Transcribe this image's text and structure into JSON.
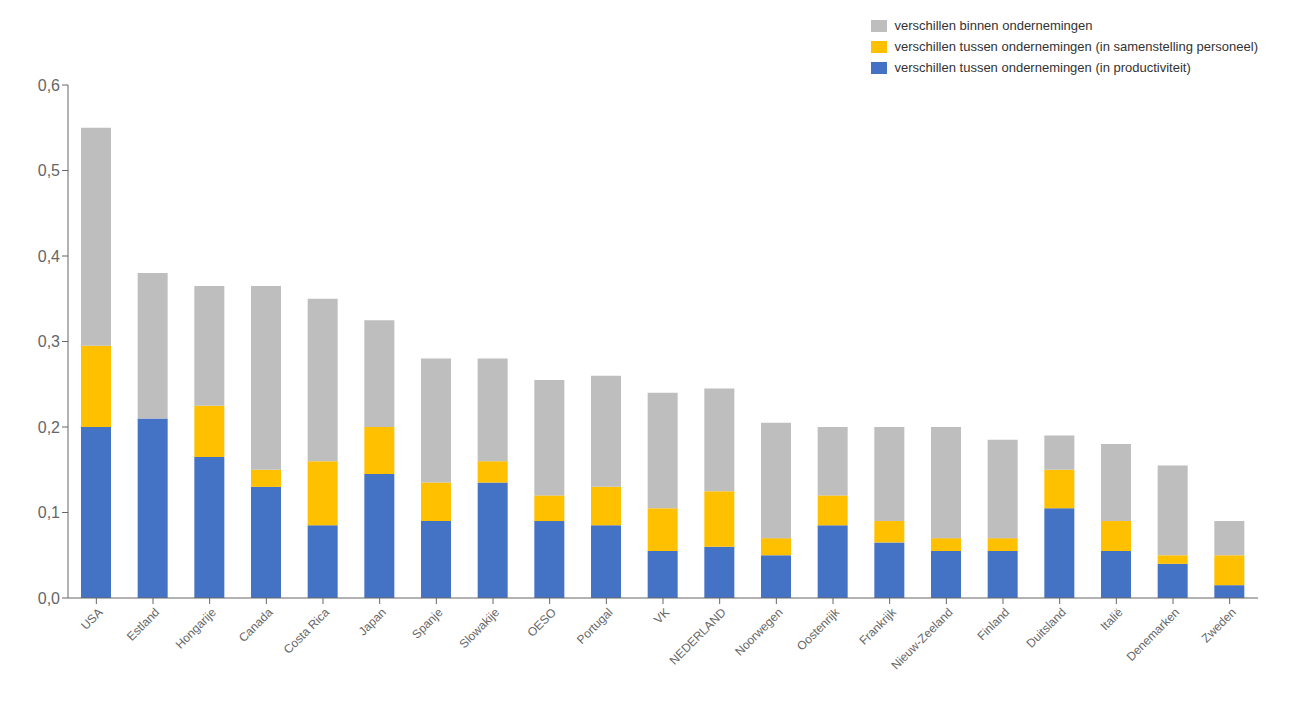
{
  "chart_data": {
    "type": "bar",
    "stacked": true,
    "grid": false,
    "legend": "upper right",
    "categories": [
      "USA",
      "Estland",
      "Hongarije",
      "Canada",
      "Costa Rica",
      "Japan",
      "Spanje",
      "Slowakije",
      "OESO",
      "Portugal",
      "VK",
      "NEDERLAND",
      "Noorwegen",
      "Oostenrijk",
      "Frankrijk",
      "Nieuw-Zeeland",
      "Finland",
      "Duitsland",
      "Italië",
      "Denemarken",
      "Zweden"
    ],
    "series": [
      {
        "name": "verschillen tussen ondernemingen (in productiviteit)",
        "color": "#4472C4",
        "values": [
          0.2,
          0.21,
          0.165,
          0.13,
          0.085,
          0.145,
          0.09,
          0.135,
          0.09,
          0.085,
          0.055,
          0.06,
          0.05,
          0.085,
          0.065,
          0.055,
          0.055,
          0.105,
          0.055,
          0.04,
          0.015
        ]
      },
      {
        "name": "verschillen tussen ondernemingen (in samenstelling personeel)",
        "color": "#FFC000",
        "values": [
          0.095,
          0.0,
          0.06,
          0.02,
          0.075,
          0.055,
          0.045,
          0.025,
          0.03,
          0.045,
          0.05,
          0.065,
          0.02,
          0.035,
          0.025,
          0.015,
          0.015,
          0.045,
          0.035,
          0.01,
          0.035
        ]
      },
      {
        "name": "verschillen binnen ondernemingen",
        "color": "#BEBEBE",
        "values": [
          0.255,
          0.17,
          0.14,
          0.215,
          0.19,
          0.125,
          0.145,
          0.12,
          0.135,
          0.13,
          0.135,
          0.12,
          0.135,
          0.08,
          0.11,
          0.13,
          0.115,
          0.04,
          0.09,
          0.105,
          0.04
        ]
      }
    ],
    "ylim": [
      0,
      0.6
    ],
    "yticks": [
      {
        "value": 0.0,
        "label": "0,0"
      },
      {
        "value": 0.1,
        "label": "0,1"
      },
      {
        "value": 0.2,
        "label": "0,2"
      },
      {
        "value": 0.3,
        "label": "0,3"
      },
      {
        "value": 0.4,
        "label": "0,4"
      },
      {
        "value": 0.5,
        "label": "0,5"
      },
      {
        "value": 0.6,
        "label": "0,6"
      }
    ]
  }
}
